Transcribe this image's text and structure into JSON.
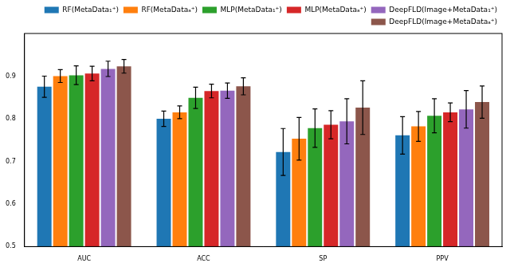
{
  "chart_data": {
    "type": "bar",
    "categories": [
      "AUC",
      "ACC",
      "SP",
      "PPV"
    ],
    "series": [
      {
        "name": "RF(MetaData₁⁺)",
        "color": "#1f77b4",
        "values": [
          0.875,
          0.8,
          0.722,
          0.761
        ],
        "errors": [
          0.025,
          0.018,
          0.055,
          0.044
        ]
      },
      {
        "name": "RF(MetaDataₐ⁺)",
        "color": "#ff7f0e",
        "values": [
          0.9,
          0.815,
          0.753,
          0.782
        ],
        "errors": [
          0.015,
          0.015,
          0.05,
          0.035
        ]
      },
      {
        "name": "MLP(MetaData₁⁺)",
        "color": "#2ca02c",
        "values": [
          0.902,
          0.849,
          0.778,
          0.807
        ],
        "errors": [
          0.022,
          0.025,
          0.045,
          0.04
        ]
      },
      {
        "name": "MLP(MetaDataₐ⁺)",
        "color": "#d62728",
        "values": [
          0.906,
          0.865,
          0.786,
          0.815
        ],
        "errors": [
          0.017,
          0.016,
          0.033,
          0.022
        ]
      },
      {
        "name": "DeepFLD(Image+MetaData₁⁺)",
        "color": "#9467bd",
        "values": [
          0.917,
          0.866,
          0.794,
          0.822
        ],
        "errors": [
          0.018,
          0.018,
          0.053,
          0.044
        ]
      },
      {
        "name": "DeepFLD(Image+MetaDataₐ⁺)",
        "color": "#8c564b",
        "values": [
          0.923,
          0.876,
          0.826,
          0.839
        ],
        "errors": [
          0.016,
          0.02,
          0.063,
          0.038
        ]
      }
    ],
    "ylim": [
      0.5,
      1.0
    ],
    "yticks": [
      0.5,
      0.6,
      0.7,
      0.8,
      0.9
    ],
    "grid": false,
    "legend": "upper right"
  }
}
